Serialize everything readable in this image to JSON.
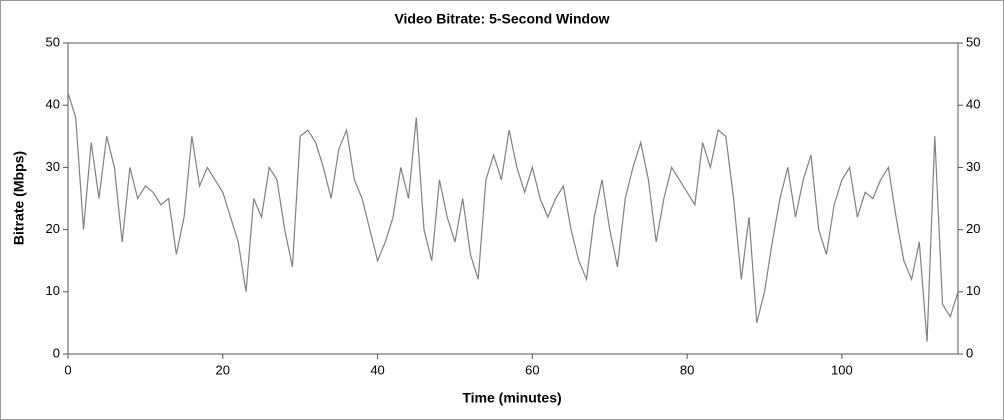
{
  "chart_data": {
    "type": "line",
    "title": "Video Bitrate: 5-Second Window",
    "x_label": "Time (minutes)",
    "y_label": "Bitrate (Mbps)",
    "color": "#808080",
    "grid": false,
    "x": [
      0,
      1,
      2,
      3,
      4,
      5,
      6,
      7,
      8,
      9,
      10,
      11,
      12,
      13,
      14,
      15,
      16,
      17,
      18,
      19,
      20,
      21,
      22,
      23,
      24,
      25,
      26,
      27,
      28,
      29,
      30,
      31,
      32,
      33,
      34,
      35,
      36,
      37,
      38,
      39,
      40,
      41,
      42,
      43,
      44,
      45,
      46,
      47,
      48,
      49,
      50,
      51,
      52,
      53,
      54,
      55,
      56,
      57,
      58,
      59,
      60,
      61,
      62,
      63,
      64,
      65,
      66,
      67,
      68,
      69,
      70,
      71,
      72,
      73,
      74,
      75,
      76,
      77,
      78,
      79,
      80,
      81,
      82,
      83,
      84,
      85,
      86,
      87,
      88,
      89,
      90,
      91,
      92,
      93,
      94,
      95,
      96,
      97,
      98,
      99,
      100,
      101,
      102,
      103,
      104,
      105,
      106,
      107,
      108,
      109,
      110,
      111,
      112,
      113,
      114,
      115
    ],
    "values": [
      42,
      38,
      20,
      34,
      25,
      35,
      30,
      18,
      30,
      25,
      27,
      26,
      24,
      25,
      16,
      22,
      35,
      27,
      30,
      28,
      26,
      22,
      18,
      10,
      25,
      22,
      30,
      28,
      20,
      14,
      35,
      36,
      34,
      30,
      25,
      33,
      36,
      28,
      25,
      20,
      15,
      18,
      22,
      30,
      25,
      38,
      20,
      15,
      28,
      22,
      18,
      25,
      16,
      12,
      28,
      32,
      28,
      36,
      30,
      26,
      30,
      25,
      22,
      25,
      27,
      20,
      15,
      12,
      22,
      28,
      20,
      14,
      25,
      30,
      34,
      28,
      18,
      25,
      30,
      28,
      26,
      24,
      34,
      30,
      36,
      35,
      25,
      12,
      22,
      5,
      10,
      18,
      25,
      30,
      22,
      28,
      32,
      20,
      16,
      24,
      28,
      30,
      22,
      26,
      25,
      28,
      30,
      22,
      15,
      12,
      18,
      2,
      35,
      8,
      6,
      10
    ],
    "xlim": [
      0,
      115
    ],
    "xticks": [
      0,
      20,
      40,
      60,
      80,
      100
    ],
    "ylim": [
      0,
      50
    ],
    "yticks": [
      0,
      10,
      20,
      30,
      40,
      50
    ],
    "y2lim": [
      0,
      50
    ],
    "y2ticks": [
      0,
      10,
      20,
      30,
      40,
      50
    ]
  }
}
